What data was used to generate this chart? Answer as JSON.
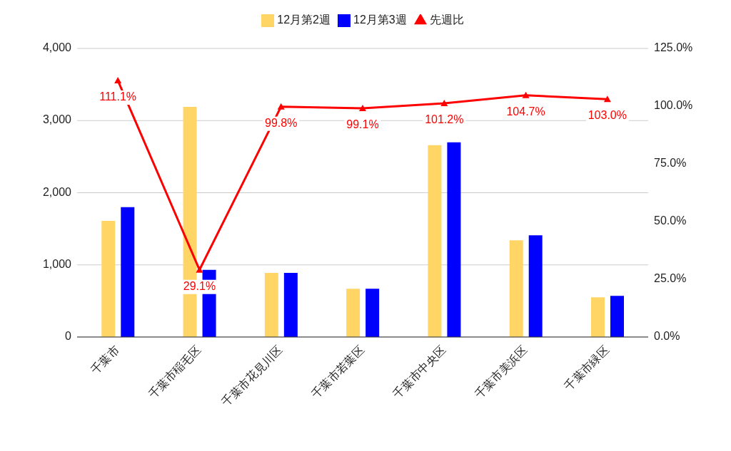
{
  "chart_data": {
    "type": "bar",
    "categories": [
      "千葉市",
      "千葉市稲毛区",
      "千葉市花見川区",
      "千葉市若葉区",
      "千葉市中央区",
      "千葉市美浜区",
      "千葉市緑区"
    ],
    "series": [
      {
        "name": "12月第2週",
        "color": "#ffd666",
        "values": [
          1610,
          3190,
          890,
          670,
          2660,
          1340,
          550
        ]
      },
      {
        "name": "12月第3週",
        "color": "#0000ff",
        "values": [
          1800,
          930,
          890,
          670,
          2700,
          1410,
          570
        ]
      },
      {
        "name": "先週比",
        "type": "line",
        "axis": "y2",
        "color": "#ff0000",
        "values": [
          111.1,
          29.1,
          99.8,
          99.1,
          101.2,
          104.7,
          103.0
        ],
        "value_labels": [
          "111.1%",
          "29.1%",
          "99.8%",
          "99.1%",
          "101.2%",
          "104.7%",
          "103.0%"
        ]
      }
    ],
    "ylim": [
      0,
      4000
    ],
    "yticks": [
      0,
      {
        "value": 1000,
        "label": "1,000"
      },
      {
        "value": 2000,
        "label": "2,000"
      },
      {
        "value": 3000,
        "label": "3,000"
      },
      {
        "value": 4000,
        "label": "4,000"
      }
    ],
    "y2lim": [
      0,
      125
    ],
    "y2ticks": [
      {
        "value": 0,
        "label": "0.0%"
      },
      {
        "value": 25,
        "label": "25.0%"
      },
      {
        "value": 50,
        "label": "50.0%"
      },
      {
        "value": 75,
        "label": "75.0%"
      },
      {
        "value": 100,
        "label": "100.0%"
      },
      {
        "value": 125,
        "label": "125.0%"
      }
    ],
    "grid": "y",
    "legend": "top",
    "marker": "triangle"
  }
}
